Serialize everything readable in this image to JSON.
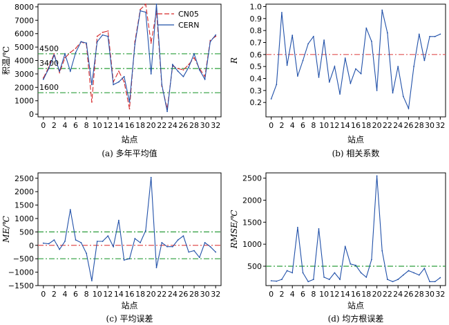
{
  "chart_data": [
    {
      "type": "line",
      "caption": "(a) 多年平均值",
      "xlabel": "站点",
      "ylabel": "积温/℃",
      "xlim": [
        -1,
        33
      ],
      "ylim": [
        -200,
        8200
      ],
      "xticks": [
        "0",
        "2",
        "4",
        "6",
        "8",
        "10",
        "12",
        "14",
        "16",
        "18",
        "20",
        "22",
        "24",
        "26",
        "28",
        "30",
        "32"
      ],
      "yticks": [
        "0",
        "1000",
        "2000",
        "3000",
        "4000",
        "5000",
        "6000",
        "7000",
        "8000"
      ],
      "x": [
        0,
        1,
        2,
        3,
        4,
        5,
        6,
        7,
        8,
        9,
        10,
        11,
        12,
        13,
        14,
        15,
        16,
        17,
        18,
        19,
        20,
        21,
        22,
        23,
        24,
        25,
        26,
        27,
        28,
        29,
        30,
        31,
        32
      ],
      "series": [
        {
          "name": "CN05",
          "color": "#d62728",
          "dash": "7,3",
          "values": [
            2700,
            3500,
            4500,
            3100,
            4200,
            4600,
            4900,
            5400,
            5200,
            900,
            5800,
            6100,
            6200,
            2400,
            3200,
            2400,
            400,
            5400,
            7800,
            8200,
            5300,
            7700,
            2100,
            400,
            3600,
            3400,
            3300,
            3700,
            4200,
            3400,
            2800,
            5500,
            5800
          ]
        },
        {
          "name": "CERN",
          "color": "#1f4fa8",
          "dash": "",
          "values": [
            2600,
            3400,
            4400,
            3200,
            4500,
            3200,
            4600,
            5400,
            5300,
            2200,
            5400,
            5900,
            5800,
            2200,
            2400,
            2800,
            900,
            5200,
            7700,
            7600,
            3000,
            8200,
            2200,
            200,
            3700,
            3200,
            2800,
            3500,
            4500,
            3300,
            2600,
            5400,
            5900
          ]
        }
      ],
      "hlines": [
        {
          "y": 4500,
          "label": "4500",
          "color": "#2a9d3a"
        },
        {
          "y": 3400,
          "label": "3400",
          "color": "#2a9d3a"
        },
        {
          "y": 1600,
          "label": "1600",
          "color": "#2a9d3a"
        }
      ],
      "legend": "top-right"
    },
    {
      "type": "line",
      "caption": "(b) 相关系数",
      "xlabel": "站点",
      "ylabel": "R",
      "xlim": [
        -1,
        33
      ],
      "ylim": [
        0.08,
        1.02
      ],
      "xticks": [
        "0",
        "2",
        "4",
        "6",
        "8",
        "10",
        "12",
        "14",
        "16",
        "18",
        "20",
        "22",
        "24",
        "26",
        "28",
        "30",
        "32"
      ],
      "yticks": [
        "0.2",
        "0.3",
        "0.4",
        "0.5",
        "0.6",
        "0.7",
        "0.8",
        "0.9",
        "1.0"
      ],
      "x": [
        0,
        1,
        2,
        3,
        4,
        5,
        6,
        7,
        8,
        9,
        10,
        11,
        12,
        13,
        14,
        15,
        16,
        17,
        18,
        19,
        20,
        21,
        22,
        23,
        24,
        25,
        26,
        27,
        28,
        29,
        30,
        31,
        32
      ],
      "series": [
        {
          "name": "",
          "color": "#1f4fa8",
          "dash": "",
          "values": [
            0.23,
            0.35,
            0.95,
            0.51,
            0.76,
            0.42,
            0.55,
            0.69,
            0.75,
            0.41,
            0.72,
            0.37,
            0.5,
            0.27,
            0.57,
            0.36,
            0.48,
            0.44,
            0.82,
            0.71,
            0.3,
            0.97,
            0.78,
            0.28,
            0.5,
            0.25,
            0.15,
            0.5,
            0.77,
            0.55,
            0.75,
            0.75,
            0.77
          ]
        }
      ],
      "hlines": [
        {
          "y": 0.6,
          "label": "",
          "color": "#e05050"
        }
      ]
    },
    {
      "type": "line",
      "caption": "(c) 平均误差",
      "xlabel": "站点",
      "ylabel": "ME/℃",
      "xlim": [
        -1,
        33
      ],
      "ylim": [
        -1500,
        2700
      ],
      "xticks": [
        "0",
        "2",
        "4",
        "6",
        "8",
        "10",
        "12",
        "14",
        "16",
        "18",
        "20",
        "22",
        "24",
        "26",
        "28",
        "30",
        "32"
      ],
      "yticks": [
        "−1500",
        "−1000",
        "−500",
        "0",
        "500",
        "1000",
        "1500",
        "2000",
        "2500"
      ],
      "x": [
        0,
        1,
        2,
        3,
        4,
        5,
        6,
        7,
        8,
        9,
        10,
        11,
        12,
        13,
        14,
        15,
        16,
        17,
        18,
        19,
        20,
        21,
        22,
        23,
        24,
        25,
        26,
        27,
        28,
        29,
        30,
        31,
        32
      ],
      "series": [
        {
          "name": "",
          "color": "#1f4fa8",
          "dash": "",
          "values": [
            80,
            60,
            200,
            -150,
            150,
            1330,
            200,
            100,
            -300,
            -1320,
            150,
            150,
            350,
            -50,
            930,
            -550,
            -500,
            250,
            100,
            550,
            2530,
            -830,
            100,
            -50,
            -50,
            200,
            350,
            -250,
            -200,
            -450,
            100,
            -50,
            -250
          ]
        }
      ],
      "hlines": [
        {
          "y": 500,
          "label": "",
          "color": "#2a9d3a"
        },
        {
          "y": 0,
          "label": "",
          "color": "#e05050"
        },
        {
          "y": -500,
          "label": "",
          "color": "#2a9d3a"
        }
      ]
    },
    {
      "type": "line",
      "caption": "(d) 均方根误差",
      "xlabel": "站点",
      "ylabel": "RMSE/℃",
      "xlim": [
        -1,
        33
      ],
      "ylim": [
        60,
        2620
      ],
      "xticks": [
        "0",
        "2",
        "4",
        "6",
        "8",
        "10",
        "12",
        "14",
        "16",
        "18",
        "20",
        "22",
        "24",
        "26",
        "28",
        "30",
        "32"
      ],
      "yticks": [
        "500",
        "1000",
        "1500",
        "2000",
        "2500"
      ],
      "x": [
        0,
        1,
        2,
        3,
        4,
        5,
        6,
        7,
        8,
        9,
        10,
        11,
        12,
        13,
        14,
        15,
        16,
        17,
        18,
        19,
        20,
        21,
        22,
        23,
        24,
        25,
        26,
        27,
        28,
        29,
        30,
        31,
        32
      ],
      "series": [
        {
          "name": "",
          "color": "#1f4fa8",
          "dash": "",
          "values": [
            170,
            160,
            200,
            400,
            350,
            1380,
            350,
            150,
            200,
            1350,
            250,
            200,
            350,
            200,
            950,
            550,
            520,
            350,
            250,
            650,
            2550,
            850,
            200,
            150,
            200,
            300,
            400,
            350,
            300,
            450,
            150,
            150,
            240
          ]
        }
      ],
      "hlines": [
        {
          "y": 500,
          "label": "",
          "color": "#2a9d3a"
        }
      ]
    }
  ]
}
